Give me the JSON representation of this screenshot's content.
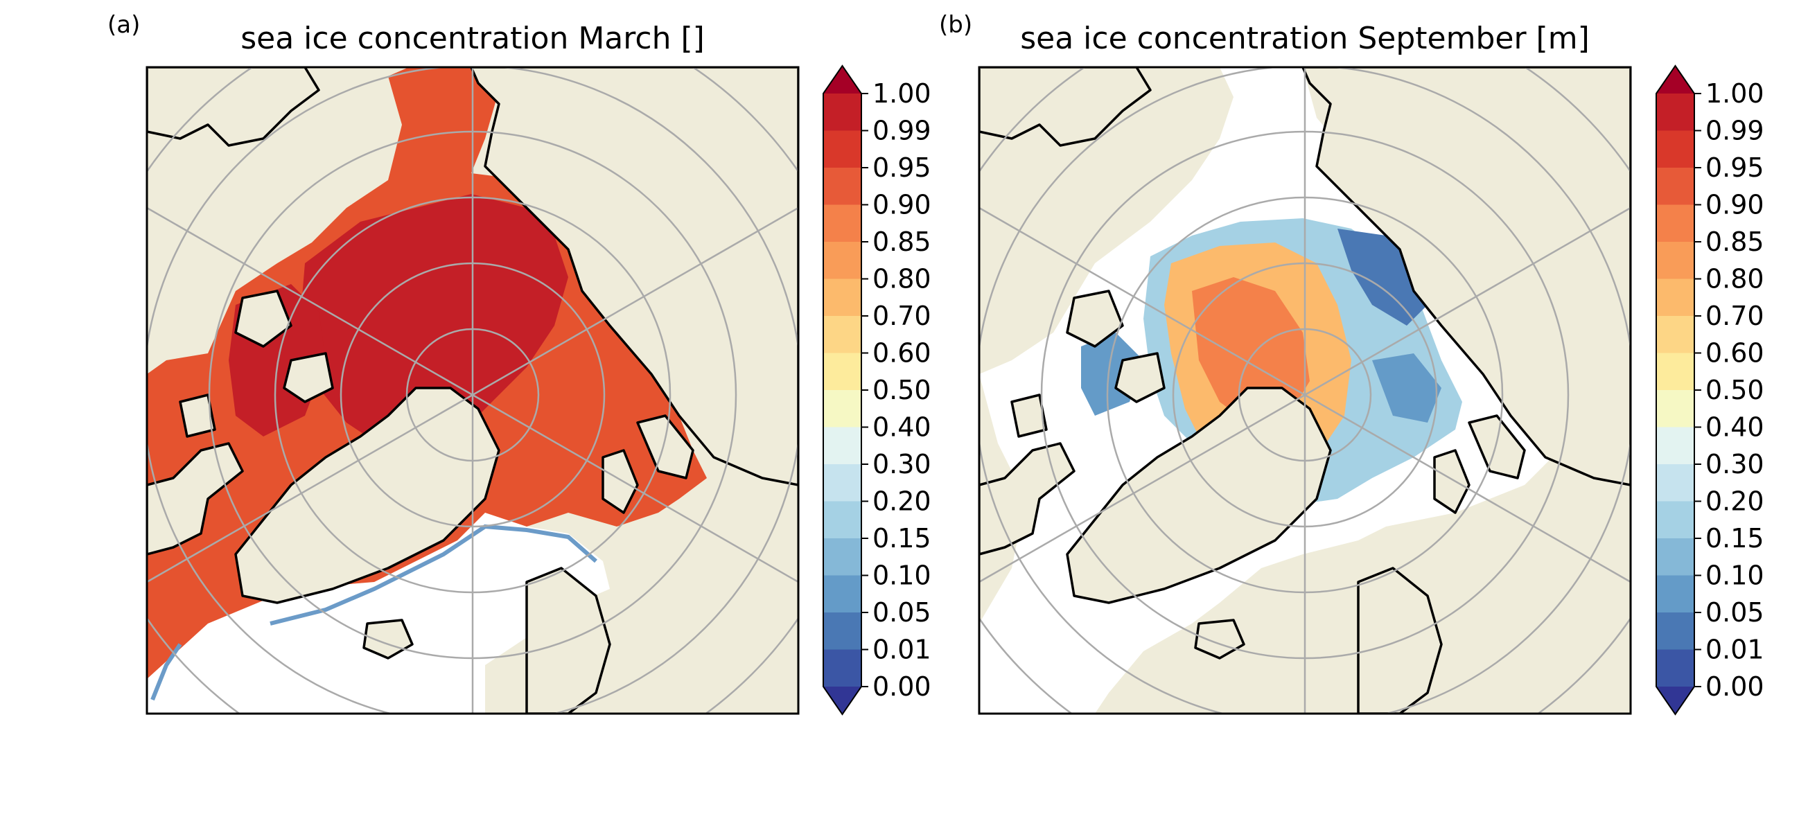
{
  "figure": {
    "panels": [
      {
        "id": "a",
        "label": "(a)",
        "title": "sea ice concentration March []"
      },
      {
        "id": "b",
        "label": "(b)",
        "title": "sea ice concentration September [m]"
      }
    ],
    "colorbar": {
      "ticks": [
        "1.00",
        "0.99",
        "0.95",
        "0.90",
        "0.85",
        "0.80",
        "0.70",
        "0.60",
        "0.50",
        "0.40",
        "0.30",
        "0.20",
        "0.15",
        "0.10",
        "0.05",
        "0.01",
        "0.00"
      ],
      "colors": [
        "#c41f27",
        "#d9382a",
        "#e75a38",
        "#f4814a",
        "#f99c58",
        "#fcba6c",
        "#fdd686",
        "#fdeb9c",
        "#f6f8c4",
        "#e3f3f1",
        "#c6e3ee",
        "#a5d1e4",
        "#85b8d7",
        "#649bc8",
        "#4a78b4",
        "#3b56a5"
      ],
      "over_color": "#a50026",
      "under_color": "#313695"
    },
    "map": {
      "land_color": "#efecda",
      "ocean_color": "#ffffff",
      "gridline_color": "#aaaaaa"
    }
  }
}
